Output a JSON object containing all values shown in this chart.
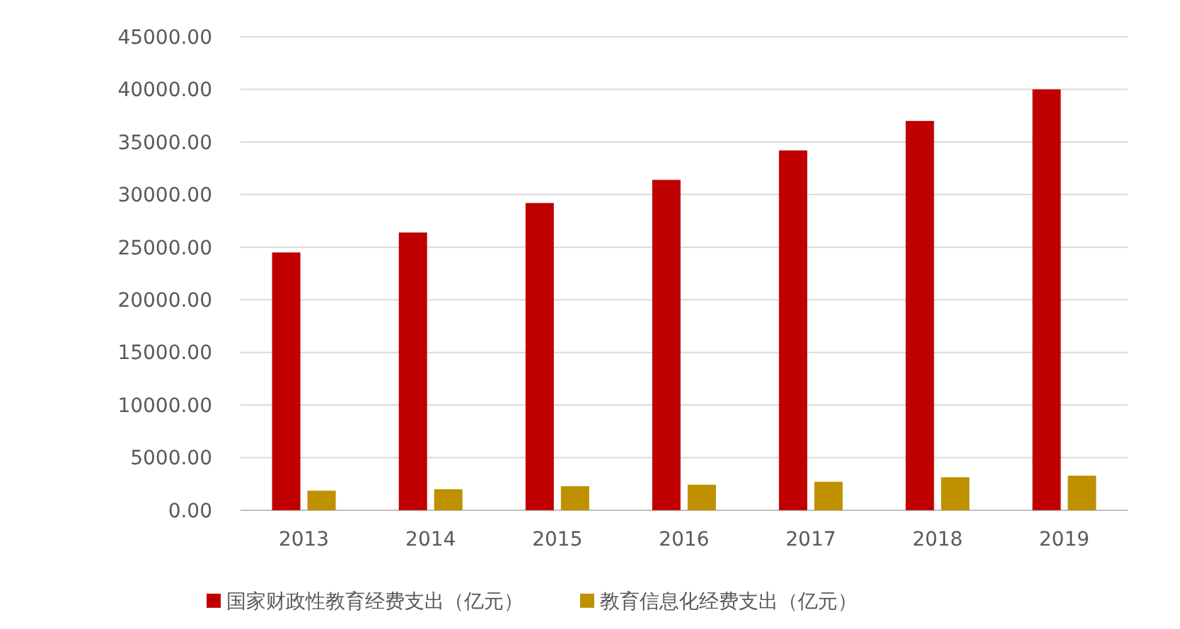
{
  "chart_data": {
    "type": "bar",
    "categories": [
      "2013",
      "2014",
      "2015",
      "2016",
      "2017",
      "2018",
      "2019"
    ],
    "series": [
      {
        "name": "国家财政性教育经费支出（亿元）",
        "color": "#c00000",
        "values": [
          24500,
          26400,
          29200,
          31400,
          34200,
          37000,
          40000
        ]
      },
      {
        "name": "教育信息化经费支出（亿元）",
        "color": "#bf9000",
        "values": [
          1860,
          2000,
          2290,
          2430,
          2710,
          3140,
          3290
        ]
      }
    ],
    "ylim": [
      0,
      45000
    ],
    "yticks": [
      {
        "value": 0,
        "label": "0.00"
      },
      {
        "value": 5000,
        "label": "5000.00"
      },
      {
        "value": 10000,
        "label": "10000.00"
      },
      {
        "value": 15000,
        "label": "15000.00"
      },
      {
        "value": 20000,
        "label": "20000.00"
      },
      {
        "value": 25000,
        "label": "25000.00"
      },
      {
        "value": 30000,
        "label": "30000.00"
      },
      {
        "value": 35000,
        "label": "35000.00"
      },
      {
        "value": 40000,
        "label": "40000.00"
      },
      {
        "value": 45000,
        "label": "45000.00"
      }
    ],
    "grid": "y",
    "legend": "bottom"
  }
}
